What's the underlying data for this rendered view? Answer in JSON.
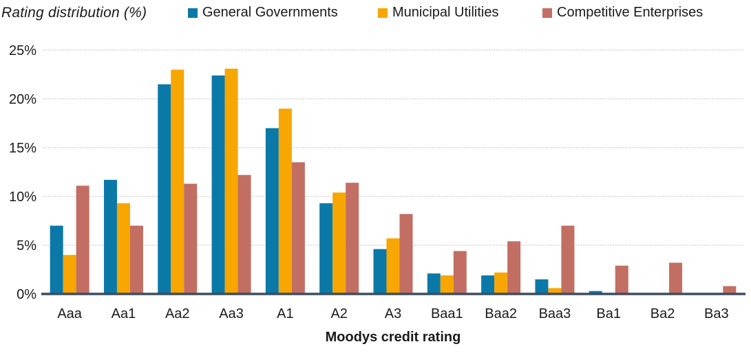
{
  "title": "Rating distribution (%)",
  "colors": {
    "general_governments": "#0b79a8",
    "municipal_utilities": "#f7a602",
    "competitive_enterprises": "#c26e62",
    "axis_line": "#3d4d5d",
    "gridline": "#d6d6d6",
    "text": "#1a1a1a",
    "background": "#ffffff"
  },
  "chart_data": {
    "type": "bar",
    "title": "Rating distribution (%)",
    "xlabel": "Moodys credit rating",
    "ylabel": "",
    "ylim": [
      0,
      25
    ],
    "yticks": [
      0,
      5,
      10,
      15,
      20,
      25
    ],
    "ytick_labels": [
      "0%",
      "5%",
      "10%",
      "15%",
      "20%",
      "25%"
    ],
    "grid": true,
    "legend_position": "top",
    "categories": [
      "Aaa",
      "Aa1",
      "Aa2",
      "Aa3",
      "A1",
      "A2",
      "A3",
      "Baa1",
      "Baa2",
      "Baa3",
      "Ba1",
      "Ba2",
      "Ba3"
    ],
    "series": [
      {
        "name": "General Governments",
        "color": "#0b79a8",
        "values": [
          7.0,
          11.7,
          21.5,
          22.4,
          17.0,
          9.3,
          4.6,
          2.1,
          1.9,
          1.5,
          0.3,
          0.1,
          0.0
        ]
      },
      {
        "name": "Municipal Utilities",
        "color": "#f7a602",
        "values": [
          4.0,
          9.3,
          23.0,
          23.1,
          19.0,
          10.4,
          5.7,
          1.9,
          2.2,
          0.6,
          0.1,
          0.1,
          0.0
        ]
      },
      {
        "name": "Competitive Enterprises",
        "color": "#c26e62",
        "values": [
          11.1,
          7.0,
          11.3,
          12.2,
          13.5,
          11.4,
          8.2,
          4.4,
          5.4,
          7.0,
          2.9,
          3.2,
          0.8
        ]
      }
    ]
  }
}
